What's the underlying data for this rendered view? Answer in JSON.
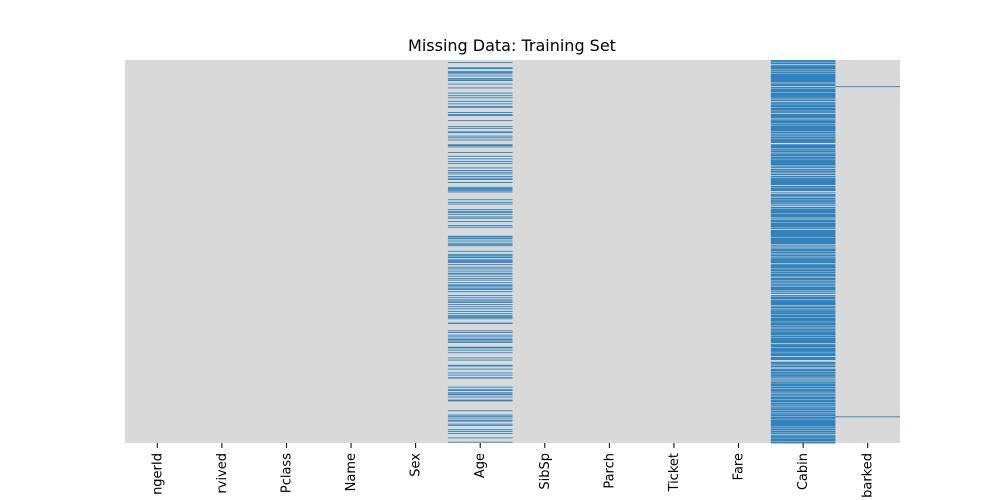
{
  "chart_data": {
    "type": "heatmap",
    "title": "Missing Data: Training Set",
    "xlabel": "",
    "ylabel": "",
    "columns": [
      "PassengerId",
      "Survived",
      "Pclass",
      "Name",
      "Sex",
      "Age",
      "SibSp",
      "Parch",
      "Ticket",
      "Fare",
      "Cabin",
      "Embarked"
    ],
    "visible_tick_labels": [
      "ngerId",
      "rvived",
      "Pclass",
      "Name",
      "Sex",
      "Age",
      "SibSp",
      "Parch",
      "Ticket",
      "Fare",
      "Cabin",
      "barked"
    ],
    "n_rows": 891,
    "missing_rows": {
      "Age": [
        5,
        17,
        19,
        26,
        28,
        29,
        31,
        32,
        36,
        42,
        45,
        46,
        47,
        48,
        55,
        64,
        65,
        76,
        77,
        82,
        87,
        95,
        101,
        107,
        109,
        121,
        126,
        128,
        140,
        154,
        158,
        159,
        166,
        168,
        176,
        180,
        181,
        185,
        186,
        196,
        198,
        201,
        214,
        223,
        229,
        235,
        240,
        241,
        250,
        256,
        260,
        264,
        270,
        274,
        277,
        284,
        295,
        298,
        300,
        301,
        303,
        304,
        306,
        324,
        330,
        334,
        335,
        347,
        351,
        354,
        358,
        359,
        364,
        367,
        368,
        375,
        384,
        388,
        409,
        410,
        411,
        413,
        415,
        420,
        425,
        428,
        431,
        444,
        451,
        454,
        457,
        459,
        464,
        466,
        468,
        470,
        475,
        481,
        485,
        490,
        495,
        497,
        502,
        507,
        511,
        517,
        522,
        524,
        527,
        531,
        533,
        538,
        547,
        552,
        557,
        560,
        563,
        564,
        568,
        573,
        578,
        584,
        589,
        593,
        596,
        598,
        601,
        602,
        611,
        612,
        613,
        629,
        633,
        639,
        643,
        648,
        650,
        653,
        656,
        667,
        669,
        674,
        680,
        692,
        697,
        709,
        711,
        718,
        727,
        732,
        738,
        739,
        740,
        760,
        766,
        768,
        773,
        776,
        778,
        783,
        790,
        792,
        793,
        815,
        825,
        826,
        828,
        832,
        837,
        839,
        846,
        849,
        859,
        863,
        868,
        878,
        888
      ],
      "Cabin": "all_except_listed",
      "Cabin_present": [
        1,
        3,
        6,
        10,
        11,
        21,
        23,
        27,
        31,
        52,
        54,
        55,
        61,
        62,
        66,
        75,
        88,
        92,
        96,
        97,
        102,
        110,
        118,
        123,
        124,
        136,
        137,
        139,
        148,
        151,
        166,
        170,
        174,
        177,
        183,
        193,
        194,
        195,
        205,
        209,
        215,
        218,
        224,
        230,
        245,
        248,
        251,
        252,
        257,
        262,
        263,
        268,
        269,
        273,
        275,
        291,
        292,
        297,
        299,
        305,
        306,
        307,
        309,
        310,
        311,
        318,
        319,
        325,
        327,
        329,
        331,
        332,
        336,
        337,
        339,
        340,
        341,
        345,
        356,
        366,
        369,
        370,
        377,
        390,
        393,
        394,
        412,
        429,
        430,
        434,
        435,
        438,
        445,
        449,
        452,
        456,
        460,
        462,
        473,
        474,
        484,
        486,
        492,
        496,
        498,
        504,
        505,
        513,
        515,
        516,
        520,
        523,
        527,
        536,
        539,
        540,
        544,
        545,
        546,
        550,
        556,
        558,
        571,
        572,
        577,
        581,
        583,
        585,
        587,
        591,
        599,
        609,
        618,
        621,
        625,
        627,
        630,
        632,
        641,
        645,
        647,
        659,
        660,
        662,
        669,
        671,
        679,
        681,
        689,
        690,
        698,
        699,
        700,
        701,
        707,
        710,
        712,
        715,
        716,
        717,
        724,
        730,
        737,
        741,
        742,
        745,
        748,
        751,
        759,
        763,
        765,
        772,
        776,
        779,
        781,
        782,
        789,
        796,
        802,
        806,
        809,
        815,
        820,
        823,
        829,
        835,
        853,
        857,
        862,
        867,
        871,
        872,
        879,
        887,
        889
      ],
      "Embarked": [
        61,
        829
      ]
    },
    "colors": {
      "present": "#d9d9d9",
      "missing": "#3182bd"
    },
    "colorbar": false,
    "grid": false
  }
}
